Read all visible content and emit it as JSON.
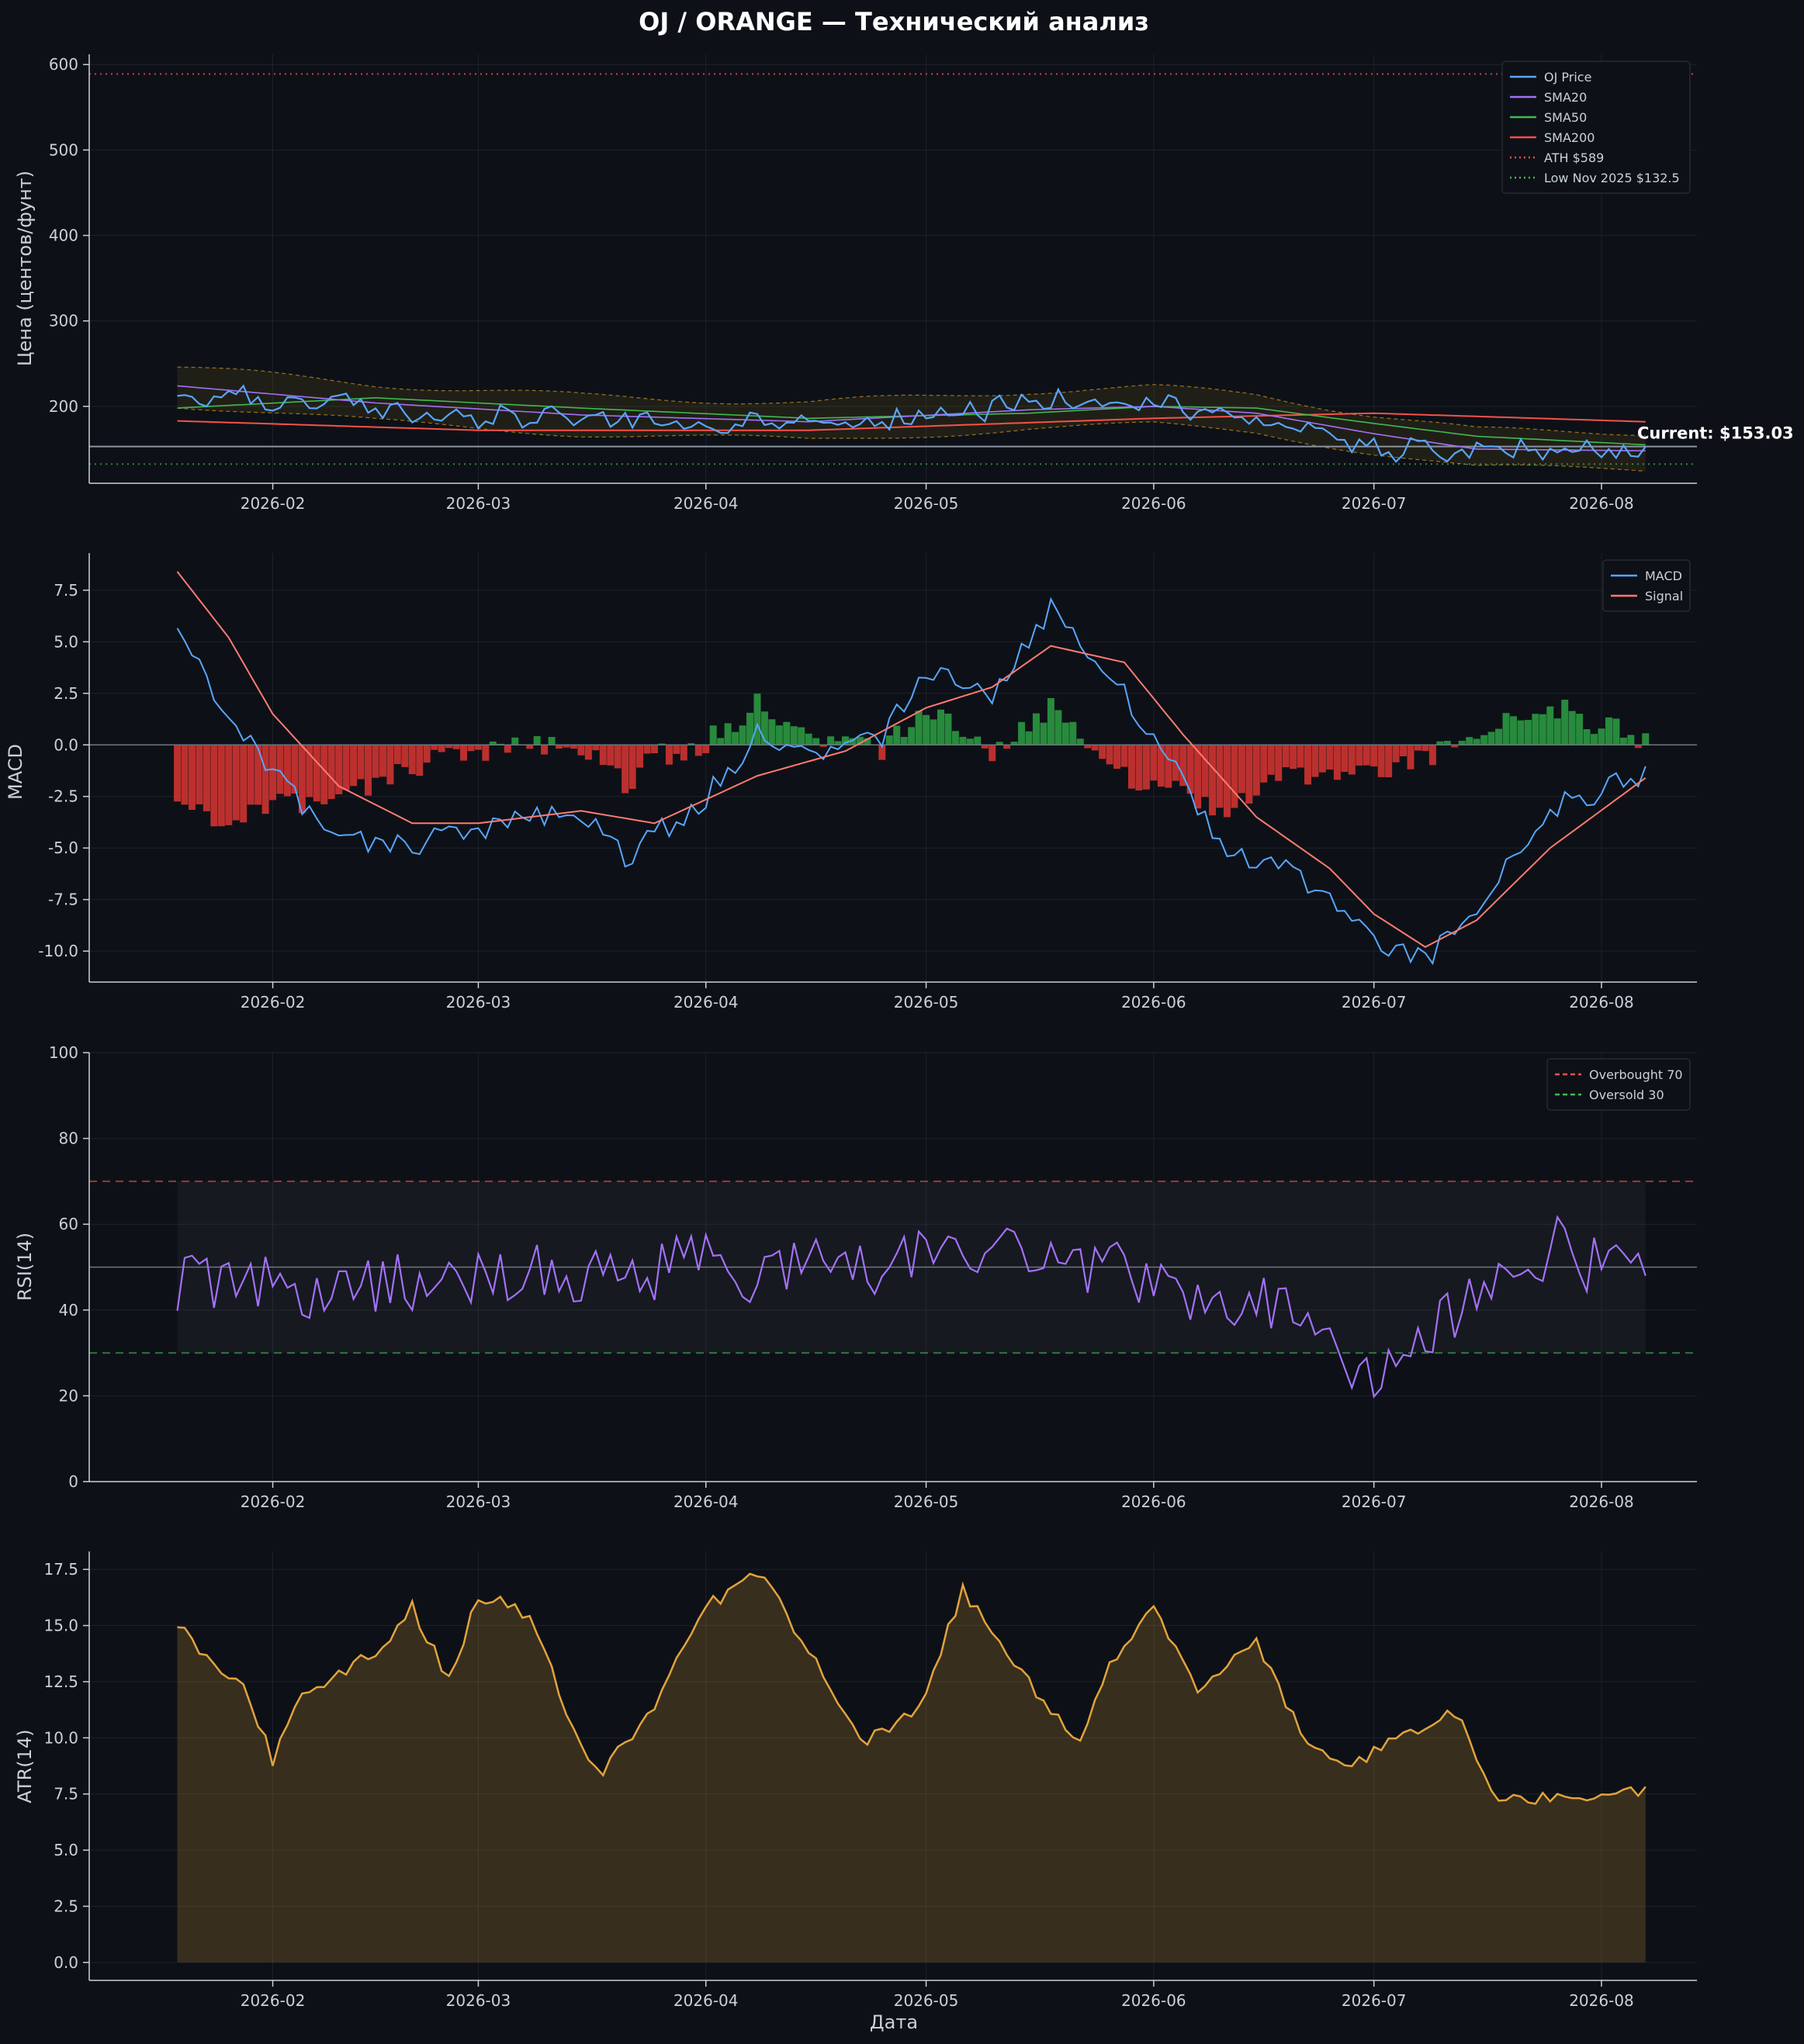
{
  "title": "OJ / ORANGE — Технический анализ",
  "colors": {
    "background": "#0d1117",
    "price": "#58a6ff",
    "sma20": "#a371f7",
    "sma50": "#3fb950",
    "sma200": "#f85149",
    "bollinger": "#d29922",
    "macd": "#58a6ff",
    "signal": "#ff7b72",
    "hist_pos": "#2ea043",
    "hist_neg": "#da3633",
    "rsi": "#a371f7",
    "atr": "#e3a33b"
  },
  "chart_data": [
    {
      "id": "price",
      "type": "line",
      "ylabel": "Цена (центов/фунт)",
      "ylim": [
        110,
        612
      ],
      "yticks": [
        200,
        300,
        400,
        500,
        600
      ],
      "xticks": [
        "2026-02",
        "2026-03",
        "2026-04",
        "2026-05",
        "2026-06",
        "2026-07",
        "2026-08"
      ],
      "x_range": [
        "2026-01-19",
        "2026-08-07"
      ],
      "legend": "top-right",
      "current_label": "Current: $153.03",
      "current_value": 153.03,
      "series": [
        {
          "name": "OJ Price",
          "anchors": [
            [
              "2026-01-19",
              213
            ],
            [
              "2026-02-01",
              210
            ],
            [
              "2026-02-15",
              198
            ],
            [
              "2026-03-01",
              188
            ],
            [
              "2026-03-15",
              186
            ],
            [
              "2026-04-01",
              182
            ],
            [
              "2026-04-15",
              180
            ],
            [
              "2026-05-01",
              188
            ],
            [
              "2026-05-15",
              206
            ],
            [
              "2026-06-01",
              205
            ],
            [
              "2026-06-15",
              185
            ],
            [
              "2026-07-01",
              152
            ],
            [
              "2026-07-15",
              146
            ],
            [
              "2026-08-07",
              150
            ]
          ]
        },
        {
          "name": "SMA20",
          "anchors": [
            [
              "2026-01-19",
              224
            ],
            [
              "2026-02-15",
              204
            ],
            [
              "2026-03-15",
              190
            ],
            [
              "2026-04-15",
              182
            ],
            [
              "2026-05-15",
              196
            ],
            [
              "2026-06-01",
              200
            ],
            [
              "2026-06-15",
              192
            ],
            [
              "2026-07-01",
              168
            ],
            [
              "2026-07-15",
              150
            ],
            [
              "2026-08-07",
              148
            ]
          ]
        },
        {
          "name": "SMA50",
          "anchors": [
            [
              "2026-01-19",
              198
            ],
            [
              "2026-02-15",
              210
            ],
            [
              "2026-03-15",
              198
            ],
            [
              "2026-04-15",
              186
            ],
            [
              "2026-05-15",
              192
            ],
            [
              "2026-06-01",
              200
            ],
            [
              "2026-06-15",
              198
            ],
            [
              "2026-07-01",
              180
            ],
            [
              "2026-07-15",
              165
            ],
            [
              "2026-08-07",
              155
            ]
          ]
        },
        {
          "name": "SMA200",
          "anchors": [
            [
              "2026-01-19",
              183
            ],
            [
              "2026-03-01",
              172
            ],
            [
              "2026-04-15",
              172
            ],
            [
              "2026-06-01",
              186
            ],
            [
              "2026-07-01",
              192
            ],
            [
              "2026-08-07",
              182
            ]
          ]
        },
        {
          "name": "ATH $589",
          "value": 589
        },
        {
          "name": "Low Nov 2025 $132.5",
          "value": 132.5
        }
      ]
    },
    {
      "id": "macd",
      "type": "line",
      "ylabel": "MACD",
      "ylim": [
        -11.5,
        9.3
      ],
      "yticks": [
        -10.0,
        -7.5,
        -5.0,
        -2.5,
        0.0,
        2.5,
        5.0,
        7.5
      ],
      "xticks": [
        "2026-02",
        "2026-03",
        "2026-04",
        "2026-05",
        "2026-06",
        "2026-07",
        "2026-08"
      ],
      "x_range": [
        "2026-01-19",
        "2026-08-07"
      ],
      "legend": "top-right",
      "series": [
        {
          "name": "MACD",
          "anchors": [
            [
              "2026-01-19",
              5.2
            ],
            [
              "2026-01-28",
              0.8
            ],
            [
              "2026-02-08",
              -4.5
            ],
            [
              "2026-02-20",
              -4.8
            ],
            [
              "2026-03-01",
              -4.0
            ],
            [
              "2026-03-15",
              -3.2
            ],
            [
              "2026-03-21",
              -5.5
            ],
            [
              "2026-04-01",
              -2.5
            ],
            [
              "2026-04-08",
              0.5
            ],
            [
              "2026-04-15",
              -0.5
            ],
            [
              "2026-04-25",
              0.5
            ],
            [
              "2026-05-01",
              3.8
            ],
            [
              "2026-05-10",
              2.5
            ],
            [
              "2026-05-18",
              6.5
            ],
            [
              "2026-05-25",
              4.0
            ],
            [
              "2026-06-01",
              0.5
            ],
            [
              "2026-06-10",
              -5.0
            ],
            [
              "2026-06-20",
              -6.0
            ],
            [
              "2026-07-01",
              -9.5
            ],
            [
              "2026-07-08",
              -10.5
            ],
            [
              "2026-07-15",
              -8.0
            ],
            [
              "2026-07-25",
              -3.0
            ],
            [
              "2026-08-07",
              -1.5
            ]
          ]
        },
        {
          "name": "Signal",
          "anchors": [
            [
              "2026-01-19",
              8.4
            ],
            [
              "2026-01-26",
              5.2
            ],
            [
              "2026-02-01",
              1.5
            ],
            [
              "2026-02-10",
              -2.0
            ],
            [
              "2026-02-20",
              -3.8
            ],
            [
              "2026-03-01",
              -3.8
            ],
            [
              "2026-03-15",
              -3.2
            ],
            [
              "2026-03-25",
              -3.8
            ],
            [
              "2026-04-08",
              -1.5
            ],
            [
              "2026-04-20",
              -0.3
            ],
            [
              "2026-05-01",
              1.8
            ],
            [
              "2026-05-10",
              2.8
            ],
            [
              "2026-05-18",
              4.8
            ],
            [
              "2026-05-28",
              4.0
            ],
            [
              "2026-06-05",
              0.5
            ],
            [
              "2026-06-15",
              -3.5
            ],
            [
              "2026-06-25",
              -6.0
            ],
            [
              "2026-07-01",
              -8.2
            ],
            [
              "2026-07-08",
              -9.8
            ],
            [
              "2026-07-15",
              -8.5
            ],
            [
              "2026-07-25",
              -5.0
            ],
            [
              "2026-08-07",
              -1.6
            ]
          ]
        }
      ]
    },
    {
      "id": "rsi",
      "type": "line",
      "ylabel": "RSI(14)",
      "ylim": [
        0,
        100
      ],
      "yticks": [
        0,
        20,
        40,
        60,
        80,
        100
      ],
      "xticks": [
        "2026-02",
        "2026-03",
        "2026-04",
        "2026-05",
        "2026-06",
        "2026-07",
        "2026-08"
      ],
      "x_range": [
        "2026-01-19",
        "2026-08-07"
      ],
      "legend": "top-right",
      "series": [
        {
          "name": "RSI(14)",
          "anchors": [
            [
              "2026-01-19",
              46
            ],
            [
              "2026-02-15",
              46
            ],
            [
              "2026-03-15",
              49
            ],
            [
              "2026-04-15",
              50
            ],
            [
              "2026-05-01",
              53
            ],
            [
              "2026-05-15",
              55
            ],
            [
              "2026-06-01",
              47
            ],
            [
              "2026-06-15",
              43
            ],
            [
              "2026-06-30",
              25
            ],
            [
              "2026-07-15",
              43
            ],
            [
              "2026-07-25",
              55
            ],
            [
              "2026-08-07",
              48
            ]
          ]
        },
        {
          "name": "Overbought 70",
          "value": 70
        },
        {
          "name": "Oversold 30",
          "value": 30
        }
      ]
    },
    {
      "id": "atr",
      "type": "area",
      "ylabel": "ATR(14)",
      "xlabel": "Дата",
      "ylim": [
        -0.8,
        18.3
      ],
      "yticks": [
        0.0,
        2.5,
        5.0,
        7.5,
        10.0,
        12.5,
        15.0,
        17.5
      ],
      "xticks": [
        "2026-02",
        "2026-03",
        "2026-04",
        "2026-05",
        "2026-06",
        "2026-07",
        "2026-08"
      ],
      "x_range": [
        "2026-01-19",
        "2026-08-07"
      ],
      "series": [
        {
          "name": "ATR(14)",
          "anchors": [
            [
              "2026-01-19",
              15.2
            ],
            [
              "2026-01-22",
              13.6
            ],
            [
              "2026-01-28",
              12.5
            ],
            [
              "2026-02-01",
              9.0
            ],
            [
              "2026-02-05",
              11.9
            ],
            [
              "2026-02-15",
              13.8
            ],
            [
              "2026-02-20",
              15.8
            ],
            [
              "2026-02-25",
              12.5
            ],
            [
              "2026-03-01",
              16.4
            ],
            [
              "2026-03-08",
              15.5
            ],
            [
              "2026-03-15",
              9.5
            ],
            [
              "2026-03-18",
              8.5
            ],
            [
              "2026-03-25",
              11.5
            ],
            [
              "2026-04-01",
              15.8
            ],
            [
              "2026-04-08",
              17.4
            ],
            [
              "2026-04-15",
              14.0
            ],
            [
              "2026-04-22",
              9.7
            ],
            [
              "2026-04-28",
              10.8
            ],
            [
              "2026-05-01",
              12.1
            ],
            [
              "2026-05-06",
              16.6
            ],
            [
              "2026-05-15",
              12.5
            ],
            [
              "2026-05-22",
              9.6
            ],
            [
              "2026-05-26",
              13.2
            ],
            [
              "2026-06-01",
              15.9
            ],
            [
              "2026-06-07",
              12.3
            ],
            [
              "2026-06-15",
              14.2
            ],
            [
              "2026-06-22",
              9.6
            ],
            [
              "2026-06-27",
              8.5
            ],
            [
              "2026-07-05",
              10.2
            ],
            [
              "2026-07-12",
              11.2
            ],
            [
              "2026-07-18",
              7.2
            ],
            [
              "2026-08-07",
              7.7
            ]
          ]
        }
      ]
    }
  ]
}
